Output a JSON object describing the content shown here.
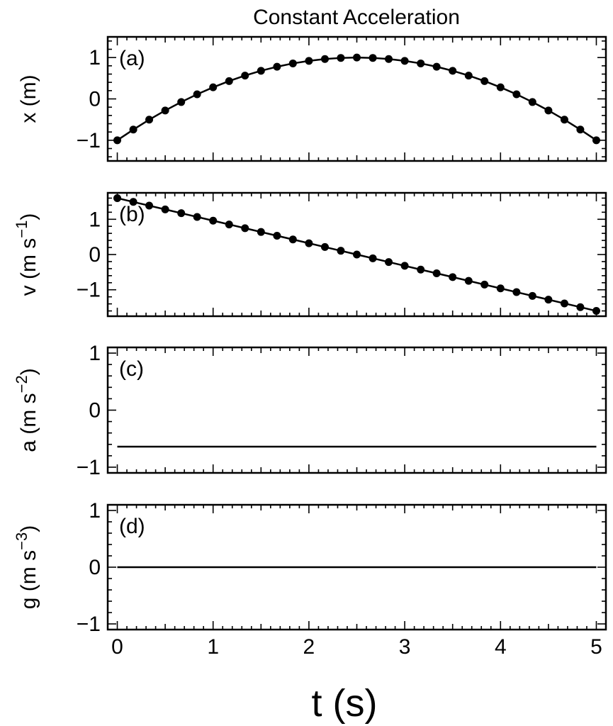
{
  "chart_data": {
    "type": "line",
    "title": "Constant Acceleration",
    "xlabel": "t (s)",
    "xlim": [
      -0.1,
      5.1
    ],
    "xticks": [
      0,
      1,
      2,
      3,
      4,
      5
    ],
    "x_tick_labels": [
      "0",
      "1",
      "2",
      "3",
      "4",
      "5"
    ],
    "grid": false,
    "panels": [
      {
        "panel_label": "(a)",
        "ylabel": "x (m)",
        "ylim": [
          -1.5,
          1.5
        ],
        "yticks": [
          -1,
          0,
          1
        ],
        "y_tick_labels": [
          "−1",
          "0",
          "1"
        ],
        "markers": true,
        "x": [
          0,
          0.167,
          0.333,
          0.5,
          0.667,
          0.833,
          1,
          1.167,
          1.333,
          1.5,
          1.667,
          1.833,
          2,
          2.167,
          2.333,
          2.5,
          2.667,
          2.833,
          3,
          3.167,
          3.333,
          3.5,
          3.667,
          3.833,
          4,
          4.167,
          4.333,
          4.5,
          4.667,
          4.833,
          5
        ],
        "y": [
          -1,
          -0.742,
          -0.502,
          -0.28,
          -0.076,
          0.111,
          0.28,
          0.431,
          0.564,
          0.68,
          0.778,
          0.858,
          0.92,
          0.964,
          0.991,
          1,
          0.991,
          0.964,
          0.92,
          0.858,
          0.778,
          0.68,
          0.564,
          0.431,
          0.28,
          0.111,
          -0.076,
          -0.28,
          -0.502,
          -0.742,
          -1
        ]
      },
      {
        "panel_label": "(b)",
        "ylabel": "v (m s⁻¹)",
        "ylim": [
          -1.75,
          1.75
        ],
        "yticks": [
          -1,
          0,
          1
        ],
        "y_tick_labels": [
          "−1",
          "0",
          "1"
        ],
        "markers": true,
        "x": [
          0,
          0.167,
          0.333,
          0.5,
          0.667,
          0.833,
          1,
          1.167,
          1.333,
          1.5,
          1.667,
          1.833,
          2,
          2.167,
          2.333,
          2.5,
          2.667,
          2.833,
          3,
          3.167,
          3.333,
          3.5,
          3.667,
          3.833,
          4,
          4.167,
          4.333,
          4.5,
          4.667,
          4.833,
          5
        ],
        "y": [
          1.6,
          1.493,
          1.387,
          1.28,
          1.173,
          1.067,
          0.96,
          0.853,
          0.747,
          0.64,
          0.533,
          0.427,
          0.32,
          0.213,
          0.107,
          0,
          -0.107,
          -0.213,
          -0.32,
          -0.427,
          -0.533,
          -0.64,
          -0.747,
          -0.853,
          -0.96,
          -1.067,
          -1.173,
          -1.28,
          -1.387,
          -1.493,
          -1.6
        ]
      },
      {
        "panel_label": "(c)",
        "ylabel": "a (m s⁻²)",
        "ylim": [
          -1.1,
          1.1
        ],
        "yticks": [
          -1,
          0,
          1
        ],
        "y_tick_labels": [
          "−1",
          "0",
          "1"
        ],
        "markers": false,
        "x": [
          0,
          5
        ],
        "y": [
          -0.64,
          -0.64
        ]
      },
      {
        "panel_label": "(d)",
        "ylabel": "g (m s⁻³)",
        "ylim": [
          -1.1,
          1.1
        ],
        "yticks": [
          -1,
          0,
          1
        ],
        "y_tick_labels": [
          "−1",
          "0",
          "1"
        ],
        "markers": false,
        "x": [
          0,
          5
        ],
        "y": [
          0,
          0
        ]
      }
    ]
  }
}
